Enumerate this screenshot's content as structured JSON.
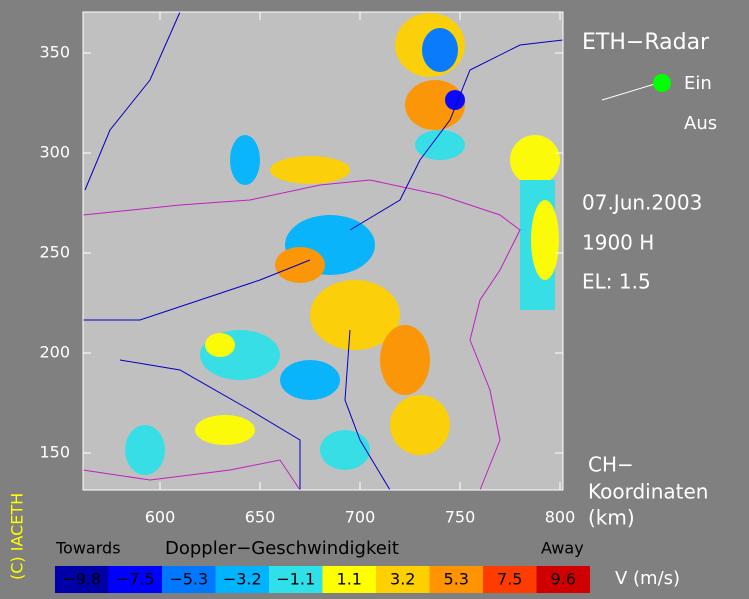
{
  "header": {
    "title": "ETH−Radar",
    "toggle_on": "Ein",
    "toggle_off": "Aus",
    "date": "07.Jun.2003",
    "time": "1900 H",
    "elevation": "EL: 1.5",
    "coords": [
      "CH−",
      "Koordinaten",
      "(km)"
    ],
    "copyright": "(C) IACETH"
  },
  "map": {
    "xlim": [
      561.5,
      801.5
    ],
    "ylim": [
      131.5,
      370.5
    ],
    "xticks": [
      600,
      650,
      700,
      750,
      800
    ],
    "yticks": [
      150,
      200,
      250,
      300,
      350
    ]
  },
  "legend": {
    "left": "Towards",
    "title": "Doppler−Geschwindigkeit",
    "right": "Away",
    "unit": "V  (m/s)",
    "bins": [
      {
        "label": "−9.8",
        "color": "#0000a8"
      },
      {
        "label": "−7.5",
        "color": "#0000ff"
      },
      {
        "label": "−5.3",
        "color": "#0078ff"
      },
      {
        "label": "−3.2",
        "color": "#00b4ff"
      },
      {
        "label": "−1.1",
        "color": "#30e0e8"
      },
      {
        "label": "1.1",
        "color": "#ffff00"
      },
      {
        "label": "3.2",
        "color": "#ffd000"
      },
      {
        "label": "5.3",
        "color": "#ff9400"
      },
      {
        "label": "7.5",
        "color": "#ff3c00"
      },
      {
        "label": "9.6",
        "color": "#d00000"
      }
    ]
  }
}
